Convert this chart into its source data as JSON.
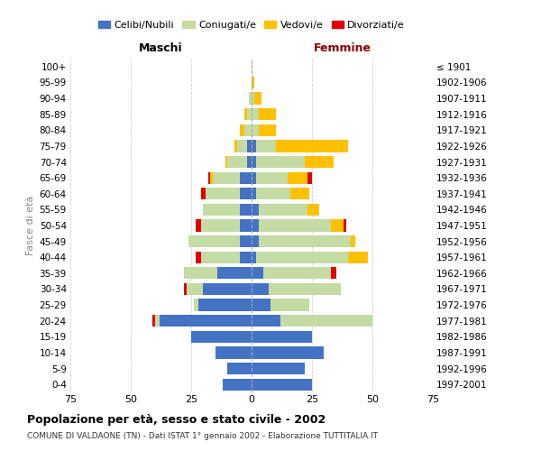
{
  "age_groups": [
    "100+",
    "95-99",
    "90-94",
    "85-89",
    "80-84",
    "75-79",
    "70-74",
    "65-69",
    "60-64",
    "55-59",
    "50-54",
    "45-49",
    "40-44",
    "35-39",
    "30-34",
    "25-29",
    "20-24",
    "15-19",
    "10-14",
    "5-9",
    "0-4"
  ],
  "birth_years": [
    "≤ 1901",
    "1902-1906",
    "1907-1911",
    "1912-1916",
    "1917-1921",
    "1922-1926",
    "1927-1931",
    "1932-1936",
    "1937-1941",
    "1942-1946",
    "1947-1951",
    "1952-1956",
    "1957-1961",
    "1962-1966",
    "1967-1971",
    "1972-1976",
    "1977-1981",
    "1982-1986",
    "1987-1991",
    "1992-1996",
    "1997-2001"
  ],
  "males": {
    "celibi": [
      0,
      0,
      0,
      0,
      0,
      2,
      2,
      5,
      5,
      5,
      5,
      5,
      5,
      14,
      20,
      22,
      38,
      25,
      15,
      10,
      12
    ],
    "coniugati": [
      0,
      0,
      1,
      2,
      3,
      4,
      8,
      11,
      14,
      15,
      16,
      21,
      16,
      14,
      7,
      2,
      2,
      0,
      0,
      0,
      0
    ],
    "vedovi": [
      0,
      0,
      0,
      1,
      2,
      1,
      1,
      1,
      0,
      0,
      0,
      0,
      0,
      0,
      0,
      0,
      0,
      0,
      0,
      0,
      0
    ],
    "divorziati": [
      0,
      0,
      0,
      0,
      0,
      0,
      0,
      1,
      2,
      0,
      2,
      0,
      2,
      0,
      1,
      0,
      1,
      0,
      0,
      0,
      0
    ]
  },
  "females": {
    "nubili": [
      0,
      0,
      0,
      0,
      0,
      2,
      2,
      2,
      2,
      3,
      3,
      3,
      2,
      5,
      7,
      8,
      12,
      25,
      30,
      22,
      25
    ],
    "coniugate": [
      0,
      0,
      1,
      3,
      3,
      8,
      20,
      13,
      14,
      20,
      30,
      38,
      38,
      28,
      30,
      16,
      38,
      0,
      0,
      0,
      0
    ],
    "vedove": [
      0,
      1,
      3,
      7,
      7,
      30,
      12,
      8,
      8,
      5,
      5,
      2,
      8,
      0,
      0,
      0,
      0,
      0,
      0,
      0,
      0
    ],
    "divorziate": [
      0,
      0,
      0,
      0,
      0,
      0,
      0,
      2,
      0,
      0,
      1,
      0,
      0,
      2,
      0,
      0,
      0,
      0,
      0,
      0,
      0
    ]
  },
  "colors": {
    "celibi": "#4472c4",
    "coniugati": "#c5dba4",
    "vedovi": "#ffc000",
    "divorziati": "#e00000"
  },
  "xlim": 75,
  "title": "Popolazione per età, sesso e stato civile - 2002",
  "subtitle": "COMUNE DI VALDAONE (TN) - Dati ISTAT 1° gennaio 2002 - Elaborazione TUTTITALIA.IT",
  "ylabel_left": "Fasce di età",
  "xlabel_left": "Maschi",
  "xlabel_right": "Femmine",
  "femmine_color": "#8b0000",
  "legend_labels": [
    "Celibi/Nubili",
    "Coniugati/e",
    "Vedovi/e",
    "Divorziati/e"
  ],
  "background_color": "#ffffff"
}
